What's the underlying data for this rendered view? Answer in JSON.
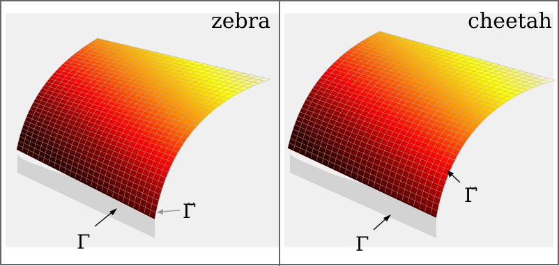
{
  "panels": [
    {
      "label": "zebra",
      "boundary_label": "Γ",
      "surface_edge_label": "Γ̆"
    },
    {
      "label": "cheetah",
      "boundary_label": "Γ",
      "surface_edge_label": "Γ̆"
    }
  ],
  "colors": {
    "background_gray": "#f0f0f0",
    "frame": "#666666",
    "ground_shadow": "#d3d3d3",
    "mesh_line": "#b0b0b0",
    "hot_dark": "#330000",
    "hot_red": "#ff0000",
    "hot_orange": "#ff8800",
    "hot_yellow": "#ffff00",
    "hot_white": "#ffffff"
  }
}
